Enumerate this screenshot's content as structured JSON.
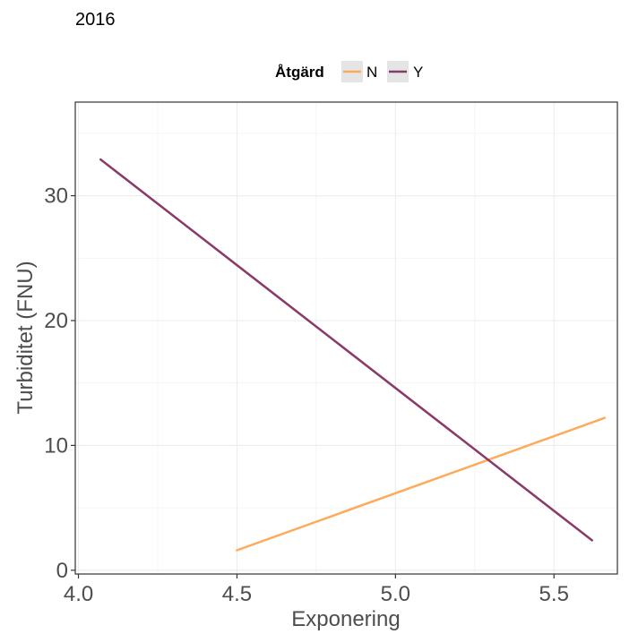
{
  "chart_data": {
    "type": "line",
    "title": "2016",
    "xlabel": "Exponering",
    "ylabel": "Turbiditet (FNU)",
    "xlim": [
      3.99,
      5.7
    ],
    "ylim": [
      -0.3,
      37.5
    ],
    "x_ticks": [
      "4.0",
      "4.5",
      "5.0",
      "5.5"
    ],
    "x_tick_values": [
      4.0,
      4.5,
      5.0,
      5.5
    ],
    "y_ticks": [
      "0",
      "10",
      "20",
      "30"
    ],
    "y_tick_values": [
      0,
      10,
      20,
      30
    ],
    "grid": true,
    "legend": {
      "title": "Åtgärd",
      "position": "top"
    },
    "series": [
      {
        "name": "N",
        "color": "#FDAA5A",
        "x": [
          4.5,
          5.66
        ],
        "y": [
          1.6,
          12.2
        ]
      },
      {
        "name": "Y",
        "color": "#8A3A67",
        "x": [
          4.07,
          5.62
        ],
        "y": [
          32.9,
          2.4
        ]
      }
    ]
  }
}
